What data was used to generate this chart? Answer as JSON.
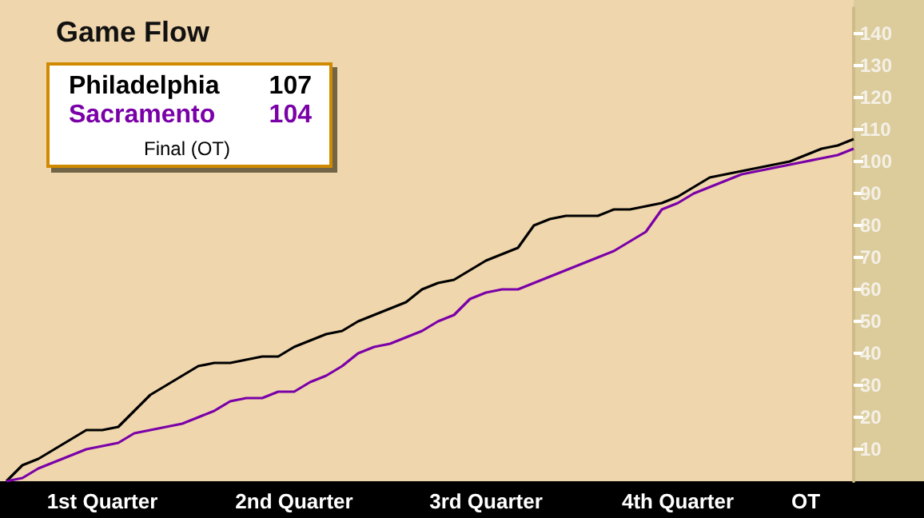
{
  "chart_data": {
    "type": "line",
    "title": "Game Flow",
    "categories": [
      null,
      null,
      null,
      null,
      null,
      null,
      "1st Quarter",
      null,
      null,
      null,
      null,
      null,
      null,
      null,
      null,
      null,
      null,
      null,
      "2nd Quarter",
      null,
      null,
      null,
      null,
      null,
      null,
      null,
      null,
      null,
      null,
      null,
      "3rd Quarter",
      null,
      null,
      null,
      null,
      null,
      null,
      null,
      null,
      null,
      null,
      null,
      "4th Quarter",
      null,
      null,
      null,
      null,
      null,
      null,
      null,
      "OT",
      null,
      null,
      null
    ],
    "series": [
      {
        "name": "Philadelphia",
        "color": "#000000",
        "values": [
          0,
          5,
          7,
          10,
          13,
          16,
          16,
          17,
          22,
          27,
          30,
          33,
          36,
          37,
          37,
          38,
          39,
          39,
          42,
          44,
          46,
          47,
          50,
          52,
          54,
          56,
          60,
          62,
          63,
          66,
          69,
          71,
          73,
          80,
          82,
          83,
          83,
          83,
          85,
          85,
          86,
          87,
          89,
          92,
          95,
          96,
          97,
          98,
          99,
          100,
          102,
          104,
          105,
          107
        ]
      },
      {
        "name": "Sacramento",
        "color": "#7a00a8",
        "values": [
          0,
          1,
          4,
          6,
          8,
          10,
          11,
          12,
          15,
          16,
          17,
          18,
          20,
          22,
          25,
          26,
          26,
          28,
          28,
          31,
          33,
          36,
          40,
          42,
          43,
          45,
          47,
          50,
          52,
          57,
          59,
          60,
          60,
          62,
          64,
          66,
          68,
          70,
          72,
          75,
          78,
          85,
          87,
          90,
          92,
          94,
          96,
          97,
          98,
          99,
          100,
          101,
          102,
          104
        ]
      }
    ],
    "ylim": [
      0,
      148
    ],
    "yticks": [
      10,
      20,
      30,
      40,
      50,
      60,
      70,
      80,
      90,
      100,
      110,
      120,
      130,
      140
    ],
    "legend": "top left",
    "annotations": [
      "107",
      "104",
      "Final (OT)"
    ]
  }
}
